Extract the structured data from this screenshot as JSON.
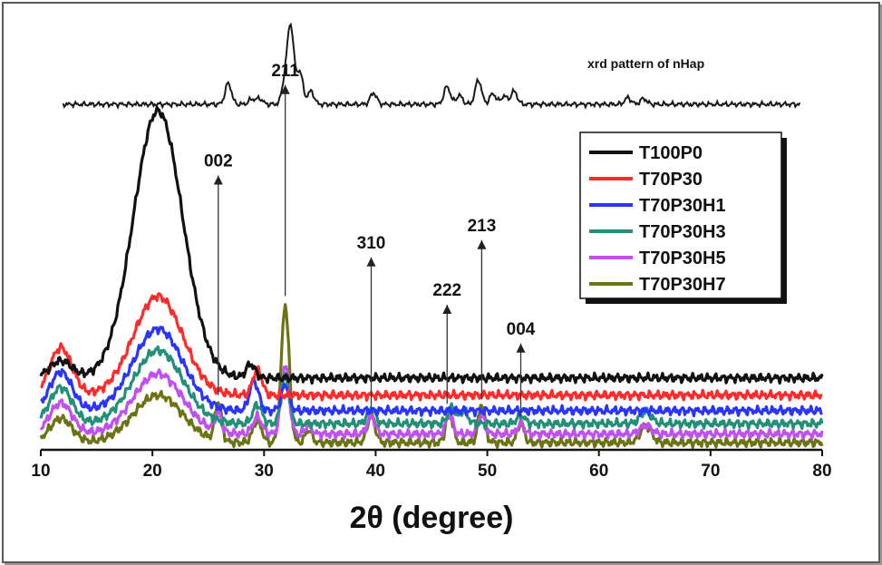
{
  "chart_data": {
    "type": "line",
    "xlabel": "2θ (degree)",
    "ylabel": "",
    "xlim": [
      10,
      80
    ],
    "x_ticks": [
      "10",
      "20",
      "30",
      "40",
      "50",
      "60",
      "70",
      "80"
    ],
    "grid": false,
    "legend_position": "top-right",
    "reference_pattern": {
      "label": "xrd pattern of nHap",
      "color": "#1a1a1a",
      "x_range": [
        12,
        78
      ],
      "baseline": 0,
      "peaks": [
        [
          26.8,
          0.26
        ],
        [
          28.9,
          0.06
        ],
        [
          29.6,
          0.07
        ],
        [
          31.9,
          0.3
        ],
        [
          32.4,
          0.92
        ],
        [
          33.2,
          0.4
        ],
        [
          34.2,
          0.16
        ],
        [
          39.8,
          0.14
        ],
        [
          46.4,
          0.22
        ],
        [
          47.5,
          0.11
        ],
        [
          49.2,
          0.3
        ],
        [
          50.5,
          0.13
        ],
        [
          51.5,
          0.1
        ],
        [
          52.4,
          0.16
        ],
        [
          62.6,
          0.08
        ],
        [
          64.0,
          0.07
        ]
      ]
    },
    "series": [
      {
        "name": "T100P0",
        "color": "#111111",
        "baseline": 0.75,
        "bumps": [
          [
            11.8,
            0.2,
            1.0
          ],
          [
            20.5,
            3.1,
            2.2
          ],
          [
            28.8,
            0.16,
            0.4
          ]
        ]
      },
      {
        "name": "T70P30",
        "color": "#ff2a2a",
        "baseline": 0.55,
        "bumps": [
          [
            11.8,
            0.55,
            1.0
          ],
          [
            20.5,
            1.15,
            2.2
          ],
          [
            29.4,
            0.3,
            0.4
          ]
        ]
      },
      {
        "name": "T70P30H1",
        "color": "#2a34ff",
        "baseline": 0.37,
        "bumps": [
          [
            11.8,
            0.45,
            1.0
          ],
          [
            20.5,
            0.95,
            2.2
          ],
          [
            29.1,
            0.35,
            0.4
          ],
          [
            31.9,
            0.3,
            0.35
          ]
        ]
      },
      {
        "name": "T70P30H3",
        "color": "#229078",
        "baseline": 0.22,
        "bumps": [
          [
            11.8,
            0.42,
            1.0
          ],
          [
            20.5,
            0.85,
            2.2
          ],
          [
            29.4,
            0.22,
            0.4
          ],
          [
            31.9,
            0.55,
            0.35
          ],
          [
            39.6,
            0.18,
            0.35
          ],
          [
            46.8,
            0.18,
            0.35
          ],
          [
            47.9,
            0.15,
            0.35
          ],
          [
            53.0,
            0.1,
            0.35
          ],
          [
            64.2,
            0.14,
            0.5
          ]
        ]
      },
      {
        "name": "T70P30H5",
        "color": "#c050f0",
        "baseline": 0.1,
        "bumps": [
          [
            11.8,
            0.36,
            1.0
          ],
          [
            20.5,
            0.7,
            2.2
          ],
          [
            25.9,
            0.22,
            0.3
          ],
          [
            29.4,
            0.2,
            0.4
          ],
          [
            31.9,
            0.8,
            0.35
          ],
          [
            34.0,
            0.1,
            0.3
          ],
          [
            39.6,
            0.2,
            0.35
          ],
          [
            46.6,
            0.22,
            0.3
          ],
          [
            49.5,
            0.22,
            0.3
          ],
          [
            53.0,
            0.12,
            0.3
          ],
          [
            64.2,
            0.1,
            0.5
          ]
        ]
      },
      {
        "name": "T70P30H7",
        "color": "#6b7312",
        "baseline": 0.0,
        "bumps": [
          [
            11.8,
            0.28,
            1.0
          ],
          [
            20.5,
            0.55,
            2.2
          ],
          [
            25.9,
            0.45,
            0.3
          ],
          [
            29.4,
            0.25,
            0.4
          ],
          [
            31.9,
            1.6,
            0.35
          ],
          [
            34.0,
            0.15,
            0.3
          ],
          [
            39.6,
            0.32,
            0.35
          ],
          [
            46.6,
            0.38,
            0.3
          ],
          [
            49.5,
            0.45,
            0.3
          ],
          [
            53.0,
            0.22,
            0.3
          ],
          [
            64.2,
            0.2,
            0.5
          ]
        ]
      }
    ],
    "peak_labels": [
      {
        "label": "002",
        "x": 25.9,
        "y_top": 3.1,
        "y_bottom": 0.55
      },
      {
        "label": "211",
        "x": 31.9,
        "y_top": 4.15,
        "y_bottom": 1.7
      },
      {
        "label": "310",
        "x": 39.6,
        "y_top": 2.15,
        "y_bottom": 0.4
      },
      {
        "label": "222",
        "x": 46.4,
        "y_top": 1.6,
        "y_bottom": 0.45
      },
      {
        "label": "213",
        "x": 49.5,
        "y_top": 2.35,
        "y_bottom": 0.5
      },
      {
        "label": "004",
        "x": 53.0,
        "y_top": 1.15,
        "y_bottom": 0.3
      }
    ]
  }
}
